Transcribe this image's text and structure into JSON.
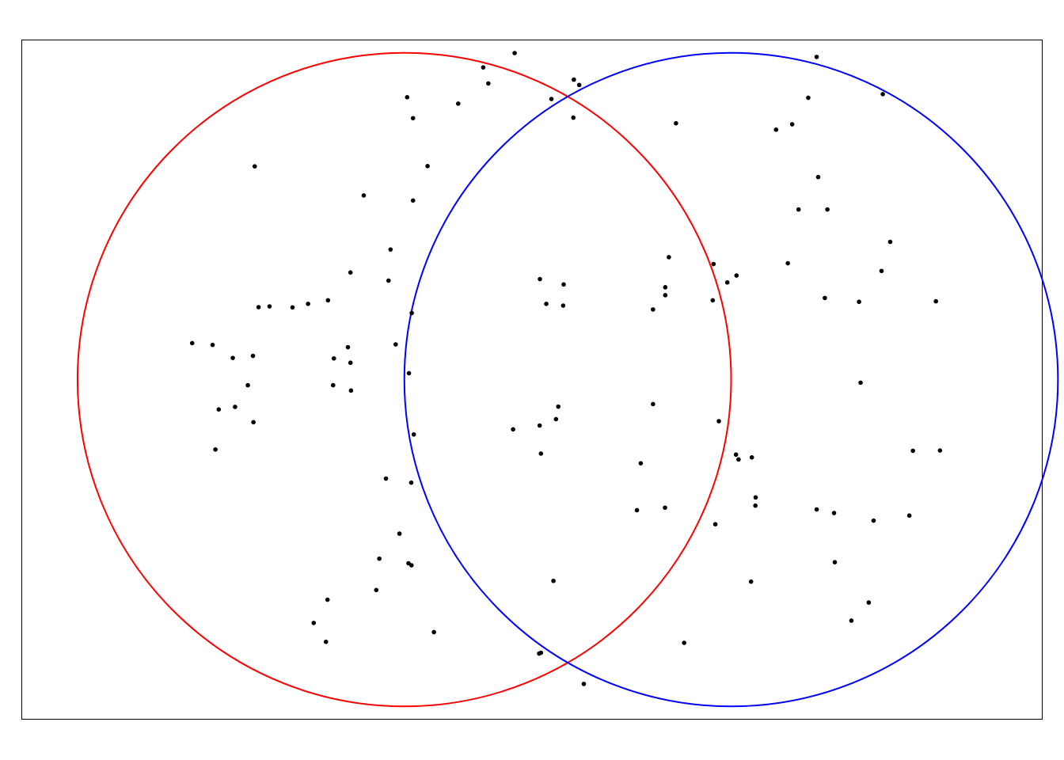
{
  "chart_data": {
    "type": "scatter",
    "title": "",
    "xlabel": "",
    "ylabel": "",
    "grid": false,
    "axes_ticks": false,
    "xlim": [
      -2.0,
      2.0
    ],
    "ylim": [
      -1.333,
      1.333
    ],
    "circles": [
      {
        "cx": -0.5,
        "cy": 0.0,
        "r": 1.28,
        "color": "#ff0000"
      },
      {
        "cx": 0.78,
        "cy": 0.0,
        "r": 1.28,
        "color": "#0000ff"
      }
    ],
    "point_color": "#000000",
    "points": [
      [
        0.203,
        -1.193
      ],
      [
        -0.068,
        1.28
      ],
      [
        0.076,
        1.1
      ],
      [
        0.185,
        1.155
      ],
      [
        0.164,
        1.176
      ],
      [
        1.115,
        1.265
      ],
      [
        1.082,
        1.105
      ],
      [
        -0.409,
        0.837
      ],
      [
        -0.289,
        1.082
      ],
      [
        -0.384,
        -0.99
      ],
      [
        -1.086,
        0.836
      ],
      [
        1.044,
        0.667
      ],
      [
        0.564,
        1.005
      ],
      [
        0.474,
        -0.096
      ],
      [
        1.121,
        0.794
      ],
      [
        0.956,
        0.98
      ],
      [
        -0.171,
        1.161
      ],
      [
        1.374,
        1.119
      ],
      [
        1.287,
        -0.012
      ],
      [
        -0.191,
        1.224
      ],
      [
        -1.251,
        0.136
      ],
      [
        0.162,
        1.027
      ],
      [
        -0.463,
        -0.215
      ],
      [
        0.474,
        0.275
      ],
      [
        -1.113,
        -0.022
      ],
      [
        -1.24,
        -0.274
      ],
      [
        0.124,
        0.373
      ],
      [
        -0.711,
        0.42
      ],
      [
        -0.779,
        -0.022
      ],
      [
        0.521,
        -0.502
      ],
      [
        -0.711,
        0.066
      ],
      [
        0.122,
        0.29
      ],
      [
        0.03,
        -0.18
      ],
      [
        0.035,
        -0.29
      ],
      [
        -0.554,
        0.51
      ],
      [
        -0.562,
        0.388
      ],
      [
        1.157,
        0.667
      ],
      [
        -0.466,
        1.025
      ],
      [
        -0.489,
        1.107
      ],
      [
        -0.572,
        -0.388
      ],
      [
        -0.534,
        0.138
      ],
      [
        -0.598,
        -0.702
      ],
      [
        0.596,
        -1.032
      ],
      [
        0.536,
        0.48
      ],
      [
        1.019,
        1.001
      ],
      [
        1.186,
        -0.716
      ],
      [
        0.522,
        0.331
      ],
      [
        1.478,
        -0.533
      ],
      [
        -0.855,
        -0.954
      ],
      [
        0.035,
        -1.071
      ],
      [
        -1.163,
        -0.107
      ],
      [
        0.094,
        -0.155
      ],
      [
        0.056,
        0.297
      ],
      [
        0.084,
        -0.789
      ],
      [
        0.103,
        -0.106
      ],
      [
        1.403,
        0.54
      ],
      [
        -0.807,
        -1.028
      ],
      [
        1.319,
        -0.874
      ],
      [
        -0.721,
        0.127
      ],
      [
        -0.801,
        -0.863
      ],
      [
        -0.473,
        -0.404
      ],
      [
        -1.028,
        0.287
      ],
      [
        0.028,
        -1.074
      ],
      [
        0.426,
        -0.328
      ],
      [
        1.183,
        -0.523
      ],
      [
        -0.472,
        -0.728
      ],
      [
        0.411,
        -0.512
      ],
      [
        0.522,
        0.362
      ],
      [
        0.861,
        -0.305
      ],
      [
        -1.093,
        0.093
      ],
      [
        1.369,
        0.426
      ],
      [
        -1.091,
        -0.167
      ],
      [
        1.338,
        -0.553
      ],
      [
        -0.484,
        -0.72
      ],
      [
        0.858,
        -0.792
      ],
      [
        -0.466,
        0.702
      ],
      [
        0.031,
        0.394
      ],
      [
        -0.799,
        0.311
      ],
      [
        0.708,
        0.311
      ],
      [
        0.711,
        0.453
      ],
      [
        -1.331,
        0.143
      ],
      [
        -0.877,
        0.297
      ],
      [
        1.281,
        0.305
      ],
      [
        -1.172,
        0.085
      ],
      [
        1.251,
        -0.945
      ],
      [
        -0.61,
        -0.825
      ],
      [
        0.732,
        -0.163
      ],
      [
        0.809,
        -0.313
      ],
      [
        1.147,
        0.32
      ],
      [
        -0.471,
        0.261
      ],
      [
        -0.659,
        0.722
      ],
      [
        -0.938,
        0.283
      ],
      [
        -0.709,
        -0.043
      ],
      [
        1.492,
        -0.279
      ],
      [
        1.582,
        0.307
      ],
      [
        1.002,
        0.456
      ],
      [
        0.801,
        0.408
      ],
      [
        1.598,
        -0.278
      ],
      [
        -0.482,
        0.025
      ],
      [
        -1.071,
        0.284
      ],
      [
        -0.776,
        0.083
      ],
      [
        -1.227,
        -0.117
      ],
      [
        1.115,
        -0.509
      ],
      [
        0.876,
        -0.462
      ],
      [
        0.718,
        -0.567
      ],
      [
        -0.519,
        -0.604
      ],
      [
        -0.074,
        -0.195
      ],
      [
        0.799,
        -0.294
      ],
      [
        0.875,
        -0.494
      ],
      [
        0.765,
        0.381
      ]
    ]
  }
}
